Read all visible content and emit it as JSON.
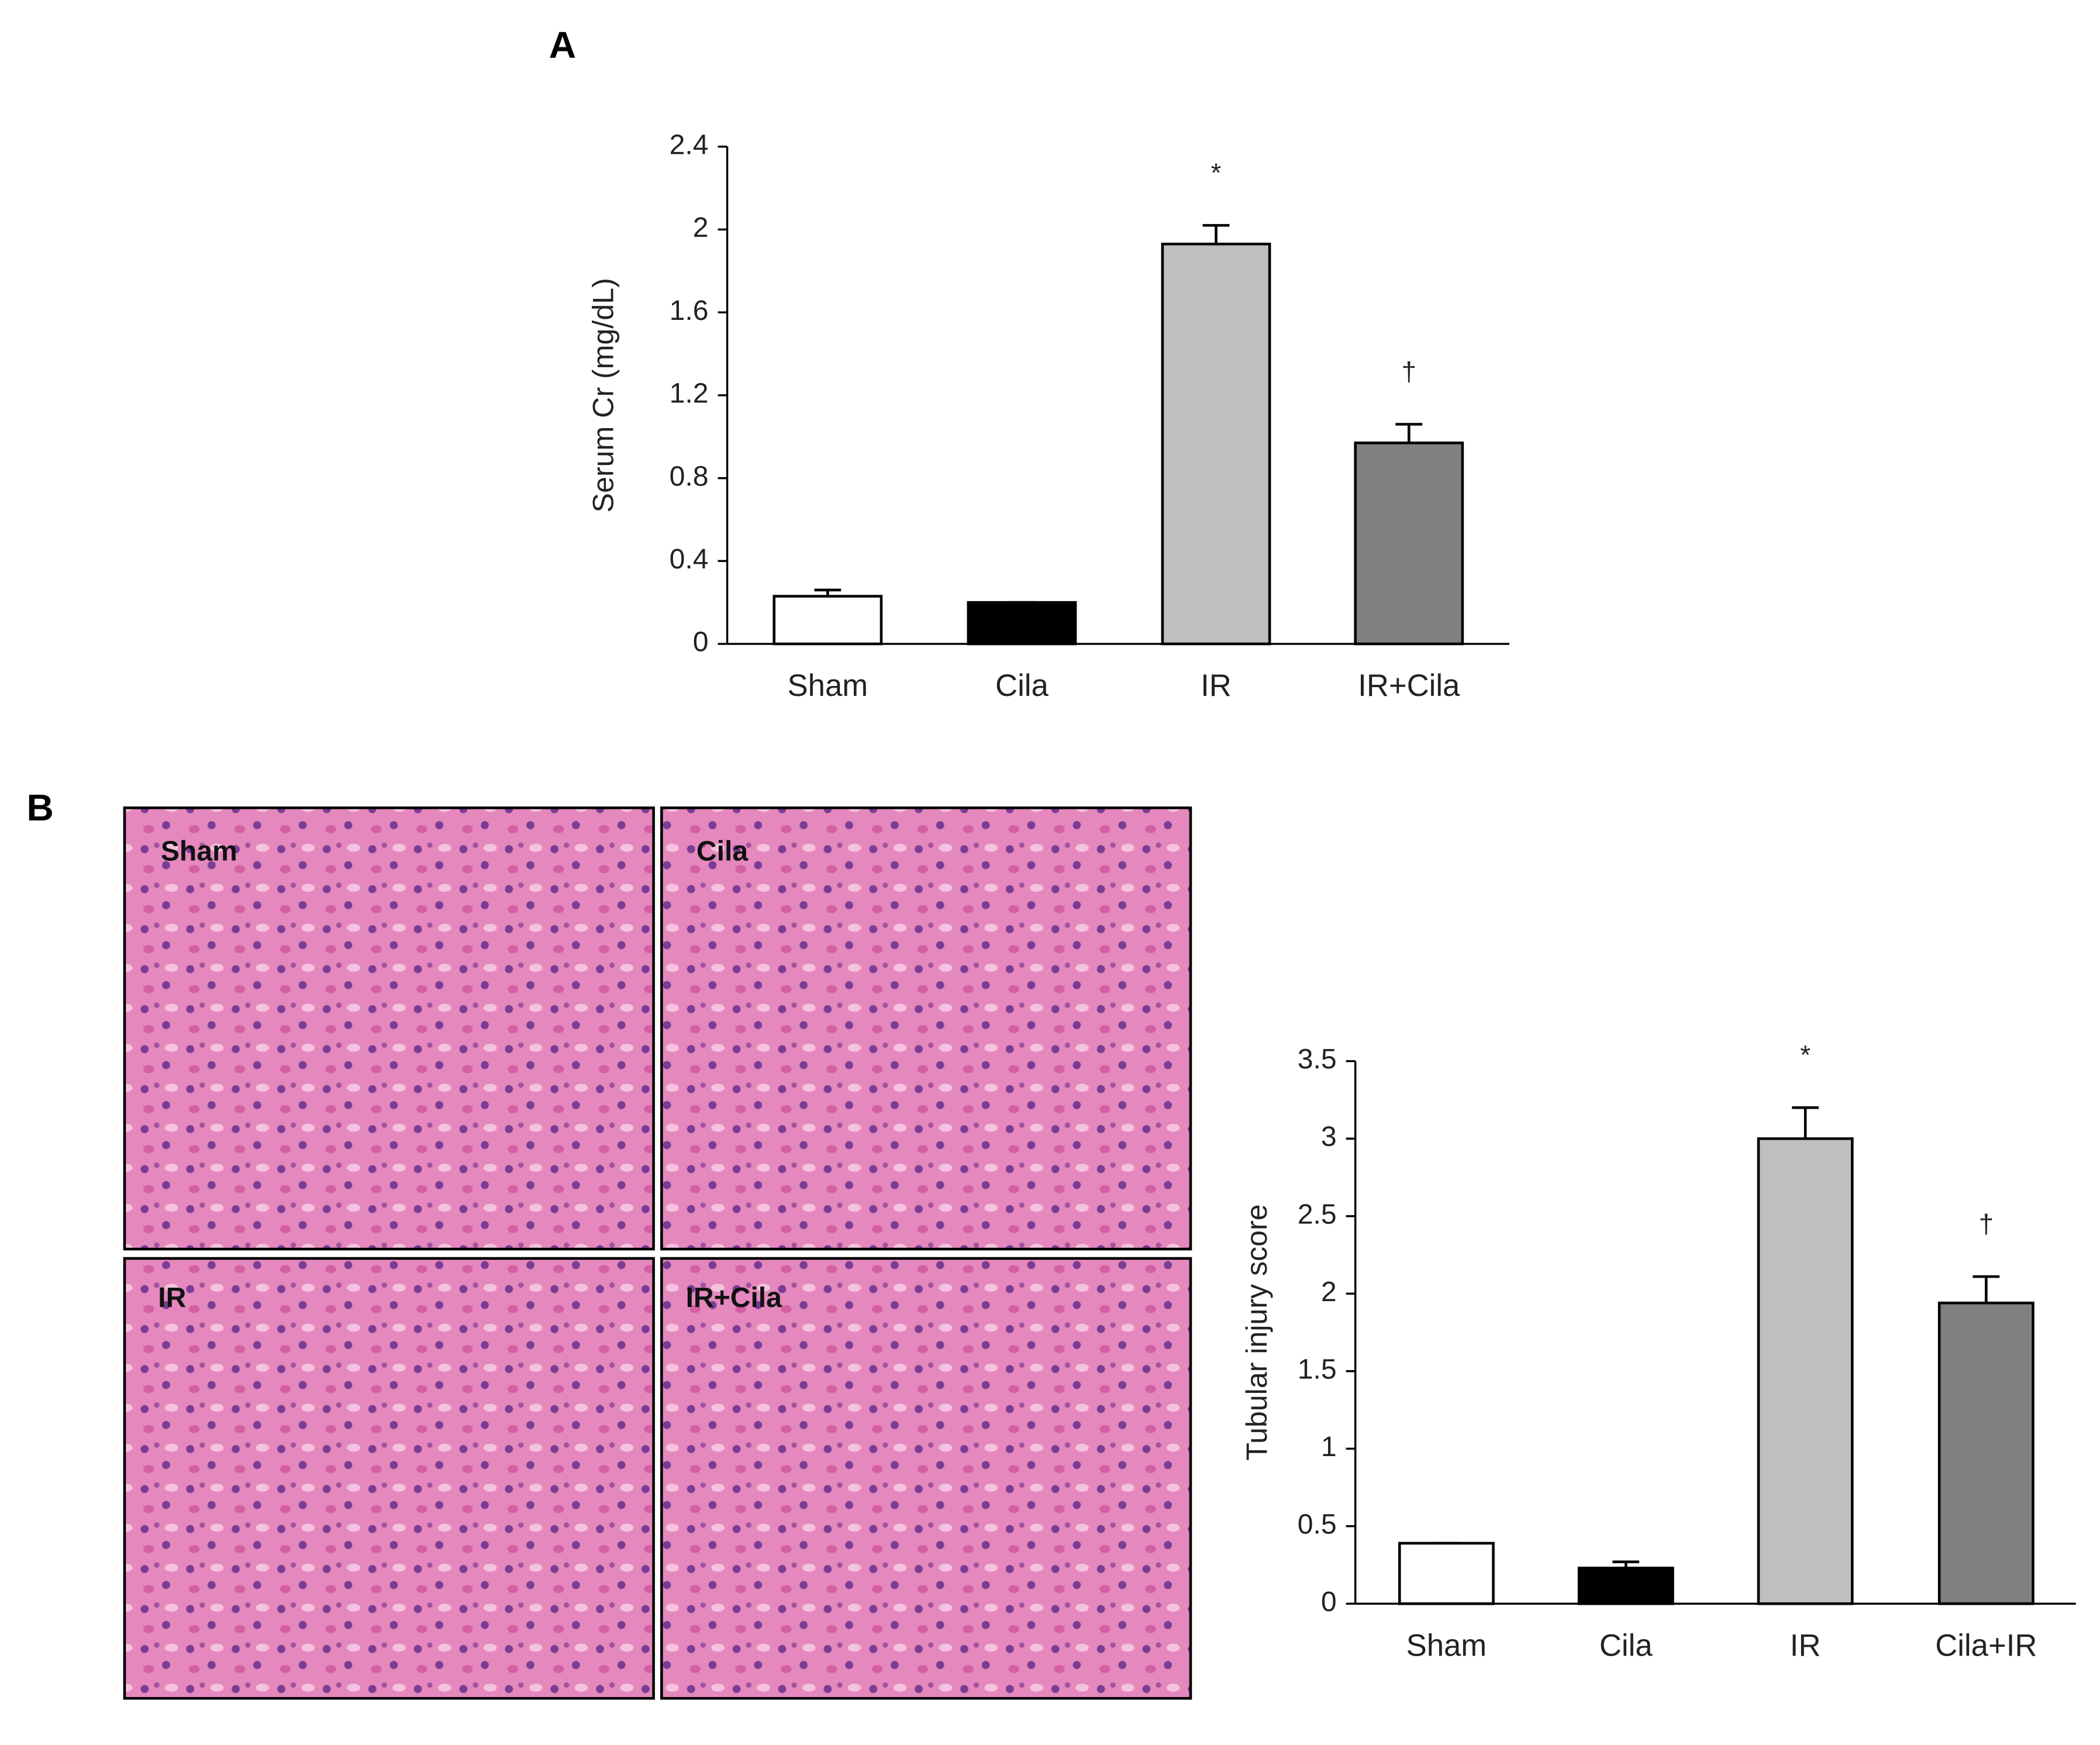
{
  "figure": {
    "panel_labels": [
      "A",
      "B"
    ],
    "micrographs": [
      "Sham",
      "Cila",
      "IR",
      "IR+Cila"
    ]
  },
  "chart_data": [
    {
      "type": "bar",
      "ylabel": "Serum Cr (mg/dL)",
      "categories": [
        "Sham",
        "Cila",
        "IR",
        "IR+Cila"
      ],
      "values": [
        0.23,
        0.2,
        1.93,
        0.97
      ],
      "errors": [
        0.03,
        0,
        0.09,
        0.09
      ],
      "colors": [
        "#ffffff",
        "#000000",
        "#bfbfbf",
        "#808080"
      ],
      "value_annotations": [
        null,
        null,
        "*",
        "†"
      ],
      "ylim": [
        0,
        2.4
      ],
      "yticks": [
        0,
        0.4,
        0.8,
        1.2,
        1.6,
        2,
        2.4
      ]
    },
    {
      "type": "bar",
      "ylabel": "Tubular injury score",
      "categories": [
        "Sham",
        "Cila",
        "IR",
        "Cila+IR"
      ],
      "values": [
        0.39,
        0.23,
        3.0,
        1.94
      ],
      "errors": [
        0,
        0.04,
        0.2,
        0.17
      ],
      "colors": [
        "#ffffff",
        "#000000",
        "#bfbfbf",
        "#808080"
      ],
      "value_annotations": [
        null,
        null,
        "*",
        "†"
      ],
      "ylim": [
        0,
        3.5
      ],
      "yticks": [
        0,
        0.5,
        1,
        1.5,
        2,
        2.5,
        3,
        3.5
      ]
    }
  ]
}
